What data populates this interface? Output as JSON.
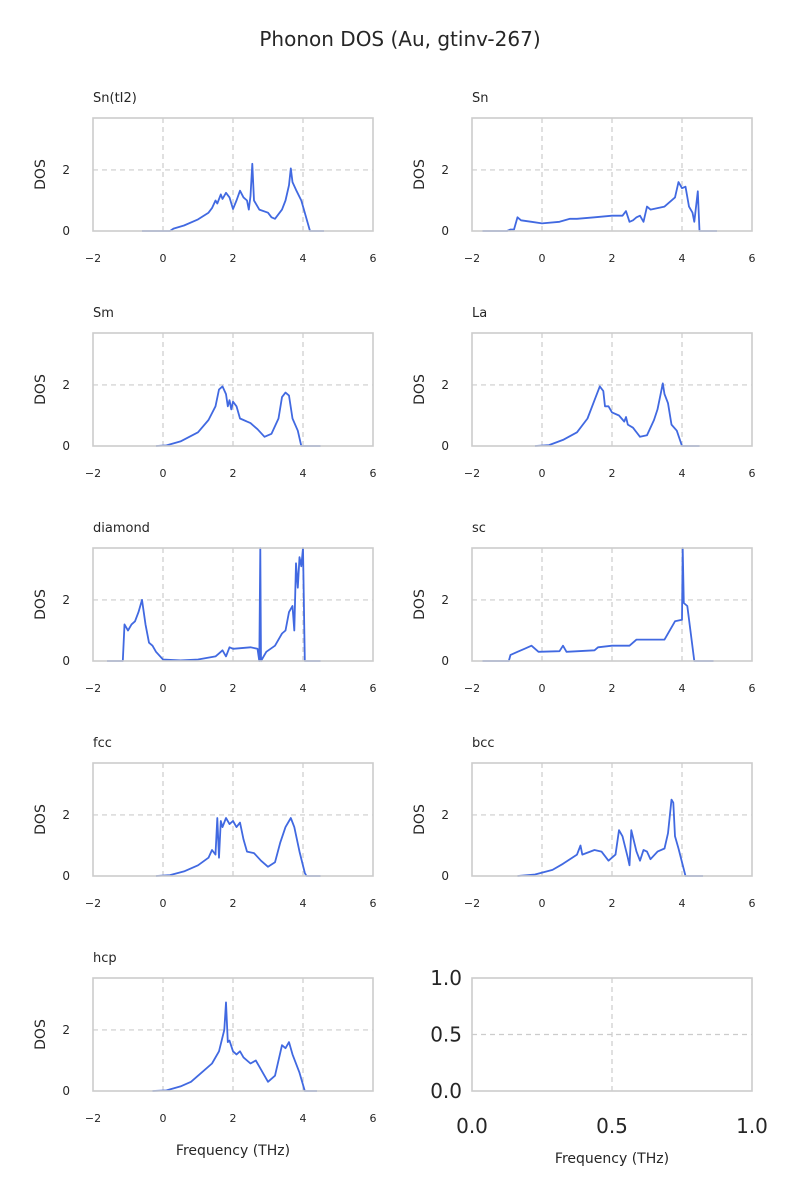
{
  "title": "Phonon DOS (Au, gtinv-267)",
  "line_color": "#4169e1",
  "grid_color": "#cccccc",
  "chart_data": [
    {
      "type": "line",
      "title": "Sn(tI2)",
      "xlabel": "",
      "ylabel": "DOS",
      "xlim": [
        -2,
        6
      ],
      "ylim": [
        0,
        3.7
      ],
      "xticks": [
        "−2",
        "0",
        "2",
        "4",
        "6"
      ],
      "yticks": [
        "0",
        "2"
      ],
      "grid": true,
      "x": [
        -0.6,
        0.2,
        0.3,
        0.6,
        1.0,
        1.3,
        1.4,
        1.5,
        1.55,
        1.65,
        1.7,
        1.8,
        1.9,
        2.0,
        2.1,
        2.2,
        2.3,
        2.4,
        2.45,
        2.5,
        2.55,
        2.6,
        2.75,
        3.0,
        3.1,
        3.2,
        3.4,
        3.5,
        3.6,
        3.65,
        3.7,
        3.8,
        3.95,
        4.05,
        4.2,
        4.6
      ],
      "y": [
        0,
        0,
        0.08,
        0.18,
        0.38,
        0.6,
        0.75,
        1.0,
        0.9,
        1.2,
        1.05,
        1.25,
        1.1,
        0.72,
        1.0,
        1.32,
        1.1,
        1.0,
        0.7,
        1.15,
        2.2,
        1.0,
        0.7,
        0.6,
        0.45,
        0.4,
        0.7,
        1.0,
        1.5,
        2.05,
        1.6,
        1.35,
        1.0,
        0.6,
        0,
        0
      ]
    },
    {
      "type": "line",
      "title": "Sn",
      "xlabel": "",
      "ylabel": "DOS",
      "xlim": [
        -2,
        6
      ],
      "ylim": [
        0,
        3.7
      ],
      "xticks": [
        "−2",
        "0",
        "2",
        "4",
        "6"
      ],
      "yticks": [
        "0",
        "2"
      ],
      "grid": true,
      "x": [
        -1.7,
        -1.0,
        -0.9,
        -0.8,
        -0.7,
        -0.6,
        -0.3,
        0,
        0.5,
        0.8,
        1.0,
        1.5,
        2.0,
        2.3,
        2.4,
        2.5,
        2.6,
        2.7,
        2.8,
        2.9,
        3.0,
        3.1,
        3.5,
        3.8,
        3.9,
        4.0,
        4.1,
        4.2,
        4.3,
        4.35,
        4.45,
        4.5,
        5.0
      ],
      "y": [
        0,
        0,
        0.05,
        0.05,
        0.45,
        0.35,
        0.3,
        0.25,
        0.3,
        0.4,
        0.4,
        0.45,
        0.5,
        0.5,
        0.65,
        0.3,
        0.35,
        0.45,
        0.5,
        0.3,
        0.8,
        0.7,
        0.8,
        1.1,
        1.6,
        1.4,
        1.45,
        0.8,
        0.6,
        0.3,
        1.3,
        0,
        0
      ]
    },
    {
      "type": "line",
      "title": "Sm",
      "xlabel": "",
      "ylabel": "DOS",
      "xlim": [
        -2,
        6
      ],
      "ylim": [
        0,
        3.7
      ],
      "xticks": [
        "−2",
        "0",
        "2",
        "4",
        "6"
      ],
      "yticks": [
        "0",
        "2"
      ],
      "grid": true,
      "x": [
        -0.2,
        0.1,
        0.5,
        1.0,
        1.3,
        1.5,
        1.6,
        1.7,
        1.8,
        1.85,
        1.9,
        1.95,
        2.0,
        2.1,
        2.2,
        2.3,
        2.4,
        2.5,
        2.7,
        2.9,
        3.1,
        3.3,
        3.4,
        3.5,
        3.6,
        3.7,
        3.85,
        3.95,
        4.5
      ],
      "y": [
        0,
        0.02,
        0.15,
        0.45,
        0.85,
        1.3,
        1.85,
        1.95,
        1.7,
        1.3,
        1.5,
        1.2,
        1.45,
        1.3,
        0.9,
        0.85,
        0.8,
        0.75,
        0.55,
        0.3,
        0.4,
        0.9,
        1.6,
        1.75,
        1.65,
        0.9,
        0.5,
        0,
        0
      ]
    },
    {
      "type": "line",
      "title": "La",
      "xlabel": "",
      "ylabel": "DOS",
      "xlim": [
        -2,
        6
      ],
      "ylim": [
        0,
        3.7
      ],
      "xticks": [
        "−2",
        "0",
        "2",
        "4",
        "6"
      ],
      "yticks": [
        "0",
        "2"
      ],
      "grid": true,
      "x": [
        -0.2,
        0.2,
        0.6,
        1.0,
        1.3,
        1.5,
        1.65,
        1.75,
        1.8,
        1.9,
        2.0,
        2.2,
        2.35,
        2.4,
        2.45,
        2.6,
        2.8,
        3.0,
        3.2,
        3.3,
        3.45,
        3.5,
        3.6,
        3.7,
        3.85,
        4.0,
        4.5
      ],
      "y": [
        0,
        0.03,
        0.2,
        0.45,
        0.9,
        1.5,
        1.95,
        1.8,
        1.3,
        1.3,
        1.1,
        1.0,
        0.8,
        0.95,
        0.7,
        0.6,
        0.3,
        0.35,
        0.85,
        1.2,
        2.05,
        1.7,
        1.4,
        0.7,
        0.5,
        0,
        0
      ]
    },
    {
      "type": "line",
      "title": "diamond",
      "xlabel": "",
      "ylabel": "DOS",
      "xlim": [
        -2,
        6
      ],
      "ylim": [
        0,
        3.7
      ],
      "xticks": [
        "−2",
        "0",
        "2",
        "4",
        "6"
      ],
      "yticks": [
        "0",
        "2"
      ],
      "grid": true,
      "x": [
        -1.6,
        -1.15,
        -1.1,
        -1.0,
        -0.9,
        -0.8,
        -0.7,
        -0.6,
        -0.5,
        -0.4,
        -0.3,
        -0.2,
        0,
        0.5,
        1.0,
        1.5,
        1.6,
        1.7,
        1.8,
        1.9,
        2.0,
        2.5,
        2.7,
        2.75,
        2.78,
        2.8,
        2.95,
        3.2,
        3.4,
        3.5,
        3.6,
        3.7,
        3.75,
        3.8,
        3.85,
        3.9,
        3.95,
        4.0,
        4.05,
        4.5
      ],
      "y": [
        0,
        0,
        1.2,
        1.0,
        1.2,
        1.3,
        1.6,
        2.0,
        1.2,
        0.6,
        0.5,
        0.3,
        0.05,
        0.02,
        0.05,
        0.15,
        0.25,
        0.35,
        0.15,
        0.45,
        0.4,
        0.45,
        0.4,
        0,
        3.7,
        0,
        0.3,
        0.5,
        0.9,
        1.0,
        1.6,
        1.8,
        1.0,
        3.2,
        2.4,
        3.4,
        3.1,
        3.7,
        0,
        0
      ]
    },
    {
      "type": "line",
      "title": "sc",
      "xlabel": "",
      "ylabel": "DOS",
      "xlim": [
        -2,
        6
      ],
      "ylim": [
        0,
        3.7
      ],
      "xticks": [
        "−2",
        "0",
        "2",
        "4",
        "6"
      ],
      "yticks": [
        "0",
        "2"
      ],
      "grid": true,
      "x": [
        -1.7,
        -0.95,
        -0.9,
        -0.7,
        -0.5,
        -0.3,
        -0.1,
        0.5,
        0.6,
        0.7,
        1.5,
        1.6,
        2.0,
        2.5,
        2.7,
        3.5,
        3.8,
        4.0,
        4.02,
        4.05,
        4.15,
        4.35,
        4.9
      ],
      "y": [
        0,
        0,
        0.2,
        0.3,
        0.4,
        0.5,
        0.3,
        0.32,
        0.5,
        0.3,
        0.35,
        0.45,
        0.5,
        0.5,
        0.7,
        0.7,
        1.3,
        1.35,
        3.7,
        1.9,
        1.8,
        0,
        0
      ]
    },
    {
      "type": "line",
      "title": "fcc",
      "xlabel": "",
      "ylabel": "DOS",
      "xlim": [
        -2,
        6
      ],
      "ylim": [
        0,
        3.7
      ],
      "xticks": [
        "−2",
        "0",
        "2",
        "4",
        "6"
      ],
      "yticks": [
        "0",
        "2"
      ],
      "grid": true,
      "x": [
        -0.2,
        0.2,
        0.6,
        1.0,
        1.3,
        1.4,
        1.5,
        1.55,
        1.6,
        1.65,
        1.7,
        1.8,
        1.9,
        2.0,
        2.1,
        2.2,
        2.3,
        2.4,
        2.6,
        2.8,
        3.0,
        3.2,
        3.35,
        3.5,
        3.65,
        3.75,
        3.9,
        4.05,
        4.1,
        4.5
      ],
      "y": [
        0,
        0.03,
        0.15,
        0.35,
        0.6,
        0.85,
        0.7,
        1.9,
        0.6,
        1.8,
        1.6,
        1.9,
        1.7,
        1.8,
        1.6,
        1.75,
        1.2,
        0.8,
        0.75,
        0.5,
        0.3,
        0.45,
        1.1,
        1.6,
        1.9,
        1.6,
        0.8,
        0.1,
        0,
        0
      ]
    },
    {
      "type": "line",
      "title": "bcc",
      "xlabel": "",
      "ylabel": "DOS",
      "xlim": [
        -2,
        6
      ],
      "ylim": [
        0,
        3.7
      ],
      "xticks": [
        "−2",
        "0",
        "2",
        "4",
        "6"
      ],
      "yticks": [
        "0",
        "2"
      ],
      "grid": true,
      "x": [
        -0.7,
        -0.2,
        0.3,
        0.6,
        1.0,
        1.1,
        1.15,
        1.5,
        1.7,
        1.9,
        2.1,
        2.2,
        2.3,
        2.45,
        2.5,
        2.55,
        2.7,
        2.8,
        2.9,
        3.0,
        3.1,
        3.3,
        3.5,
        3.6,
        3.7,
        3.75,
        3.8,
        3.9,
        4.1,
        4.6
      ],
      "y": [
        0,
        0.05,
        0.2,
        0.4,
        0.7,
        1.0,
        0.7,
        0.85,
        0.8,
        0.5,
        0.7,
        1.5,
        1.3,
        0.6,
        0.35,
        1.5,
        0.8,
        0.5,
        0.85,
        0.8,
        0.55,
        0.8,
        0.9,
        1.4,
        2.5,
        2.4,
        1.3,
        0.9,
        0,
        0
      ]
    },
    {
      "type": "line",
      "title": "hcp",
      "xlabel": "Frequency (THz)",
      "ylabel": "DOS",
      "xlim": [
        -2,
        6
      ],
      "ylim": [
        0,
        3.7
      ],
      "xticks": [
        "−2",
        "0",
        "2",
        "4",
        "6"
      ],
      "yticks": [
        "0",
        "2"
      ],
      "grid": true,
      "x": [
        -0.3,
        0.1,
        0.5,
        0.8,
        1.1,
        1.4,
        1.6,
        1.75,
        1.8,
        1.85,
        1.9,
        2.0,
        2.1,
        2.2,
        2.3,
        2.5,
        2.65,
        2.75,
        2.9,
        3.0,
        3.2,
        3.4,
        3.5,
        3.6,
        3.7,
        3.9,
        4.05,
        4.4
      ],
      "y": [
        0,
        0.02,
        0.15,
        0.3,
        0.6,
        0.9,
        1.3,
        2.0,
        2.9,
        1.6,
        1.65,
        1.3,
        1.2,
        1.3,
        1.1,
        0.9,
        1.0,
        0.8,
        0.5,
        0.3,
        0.5,
        1.5,
        1.4,
        1.6,
        1.2,
        0.6,
        0,
        0
      ]
    },
    {
      "type": "line",
      "title": "",
      "xlabel": "Frequency (THz)",
      "ylabel": "",
      "xlim": [
        0,
        1
      ],
      "ylim": [
        0,
        1
      ],
      "xticks": [
        "0.0",
        "0.5",
        "1.0"
      ],
      "yticks": [
        "0.0",
        "0.5",
        "1.0"
      ],
      "grid": true,
      "x": [],
      "y": []
    }
  ]
}
